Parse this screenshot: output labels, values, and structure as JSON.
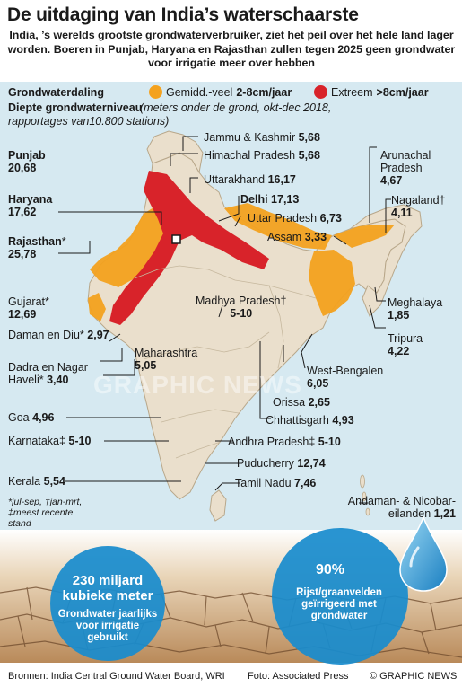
{
  "header": {
    "title": "De uitdaging van India’s waterschaarste",
    "subtitle": "India, ’s werelds grootste grondwaterverbruiker, ziet het peil over het hele land lager worden. Boeren in Punjab, Haryana en Rajasthan zullen tegen 2025 geen grondwater voor irrigatie meer over hebben"
  },
  "legend": {
    "title": "Grondwaterdaling",
    "moderate_label": "Gemidd.-veel",
    "moderate_value": "2-8cm/jaar",
    "moderate_color": "#f4a21f",
    "extreme_label": "Extreem",
    "extreme_value": ">8cm/jaar",
    "extreme_color": "#d8232a"
  },
  "depth": {
    "title": "Diepte grondwaterniveau",
    "note": "(meters onder de grond, okt-dec 2018, rapportages van10.800 stations)"
  },
  "states": [
    {
      "name": "Jammu & Kashmir",
      "value": "5,68"
    },
    {
      "name": "Himachal Pradesh",
      "value": "5,68"
    },
    {
      "name": "Punjab",
      "value": "20,68"
    },
    {
      "name": "Uttarakhand",
      "value": "16,17"
    },
    {
      "name": "Haryana",
      "value": "17,62"
    },
    {
      "name": "Delhi",
      "value": "17,13"
    },
    {
      "name": "Uttar Pradesh",
      "value": "6,73"
    },
    {
      "name": "Rajasthan",
      "mark": "*",
      "value": "25,78"
    },
    {
      "name": "Arunachal Pradesh",
      "value": "4,67"
    },
    {
      "name": "Nagaland",
      "mark": "†",
      "value": "4,11"
    },
    {
      "name": "Assam",
      "value": "3,33"
    },
    {
      "name": "Gujarat",
      "mark": "*",
      "value": "12,69"
    },
    {
      "name": "Madhya Pradesh",
      "mark": "†",
      "value": "5-10"
    },
    {
      "name": "Meghalaya",
      "value": "1,85"
    },
    {
      "name": "Daman en Diu",
      "mark": "*",
      "value": "2,97"
    },
    {
      "name": "Tripura",
      "value": "4,22"
    },
    {
      "name": "Dadra en Nagar Haveli",
      "mark": "*",
      "value": "3,40"
    },
    {
      "name": "Maharashtra",
      "value": "5,05"
    },
    {
      "name": "West-Bengalen",
      "value": "6,05"
    },
    {
      "name": "Orissa",
      "value": "2,65"
    },
    {
      "name": "Goa",
      "value": "4,96"
    },
    {
      "name": "Chhattisgarh",
      "value": "4,93"
    },
    {
      "name": "Karnataka",
      "mark": "‡",
      "value": "5-10"
    },
    {
      "name": "Andhra Pradesh",
      "mark": "‡",
      "value": "5-10"
    },
    {
      "name": "Puducherry",
      "value": "12,74"
    },
    {
      "name": "Kerala",
      "value": "5,54"
    },
    {
      "name": "Tamil Nadu",
      "value": "7,46"
    },
    {
      "name": "Andaman- & Nicobar-eilanden",
      "value": "1,21"
    }
  ],
  "footnote": "*jul-sep, †jan-mrt, ‡meest recente stand grondwaterjaarboek",
  "stat_left": {
    "big": "230 miljard kubieke meter",
    "small": "Grondwater jaarlijks voor irrigatie gebruikt"
  },
  "stat_right": {
    "big": "90%",
    "small": "Rijst/graanvelden geïrrigeerd met grondwater"
  },
  "watermark": "GRAPHIC NEWS",
  "footer": {
    "sources": "Bronnen: India Central Ground Water Board, WRI",
    "photo": "Foto: Associated Press",
    "copyright": "© GRAPHIC NEWS"
  }
}
